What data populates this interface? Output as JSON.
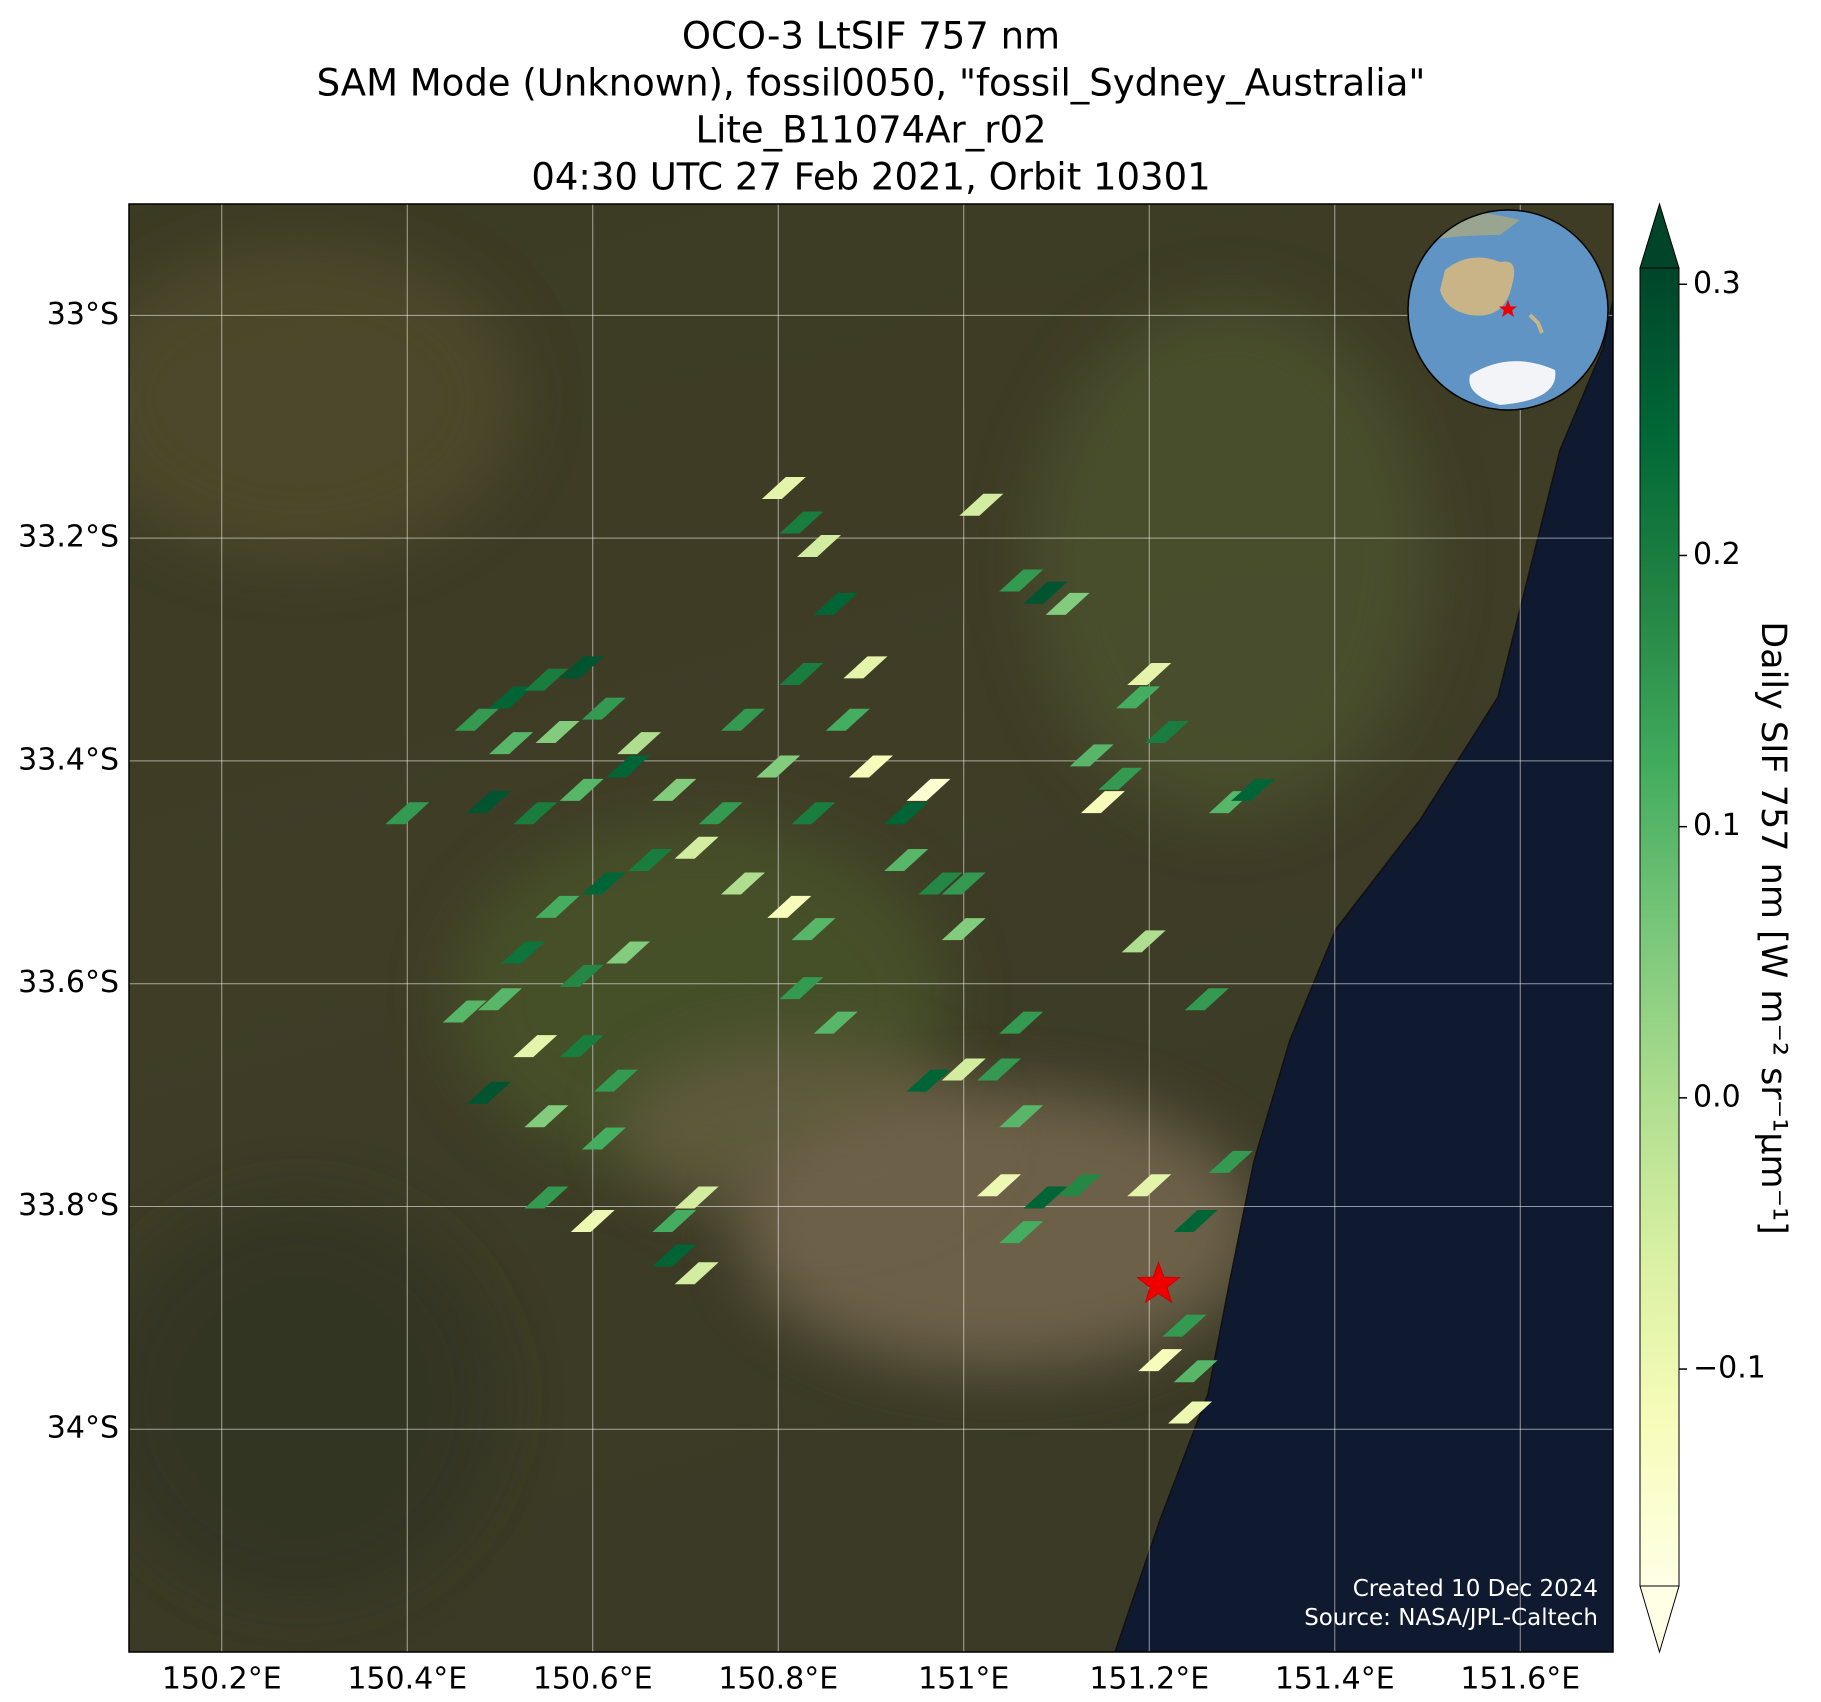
{
  "chart_data": {
    "type": "footprint-map",
    "title": [
      "OCO-3 LtSIF 757 nm",
      "SAM Mode (Unknown), fossil0050, \"fossil_Sydney_Australia\"",
      "Lite_B11074Ar_r02",
      "04:30 UTC 27 Feb 2021, Orbit 10301"
    ],
    "xlim": [
      150.1,
      151.7
    ],
    "ylim": [
      -34.2,
      -32.9
    ],
    "xticks": [
      {
        "value": 150.2,
        "label": "150.2°E"
      },
      {
        "value": 150.4,
        "label": "150.4°E"
      },
      {
        "value": 150.6,
        "label": "150.6°E"
      },
      {
        "value": 150.8,
        "label": "150.8°E"
      },
      {
        "value": 151.0,
        "label": "151°E"
      },
      {
        "value": 151.2,
        "label": "151.2°E"
      },
      {
        "value": 151.4,
        "label": "151.4°E"
      },
      {
        "value": 151.6,
        "label": "151.6°E"
      }
    ],
    "yticks": [
      {
        "value": -33.0,
        "label": "33°S"
      },
      {
        "value": -33.2,
        "label": "33.2°S"
      },
      {
        "value": -33.4,
        "label": "33.4°S"
      },
      {
        "value": -33.6,
        "label": "33.6°S"
      },
      {
        "value": -33.8,
        "label": "33.8°S"
      },
      {
        "value": -34.0,
        "label": "34°S"
      }
    ],
    "grid": true,
    "x": [
      150.475,
      150.512,
      150.55,
      150.588,
      150.512,
      150.562,
      150.612,
      150.65,
      150.488,
      150.538,
      150.588,
      150.638,
      150.688,
      150.738,
      150.712,
      150.762,
      150.812,
      150.838,
      150.662,
      150.612,
      150.562,
      150.525,
      150.588,
      150.638,
      150.4,
      150.5,
      150.462,
      150.538,
      150.588,
      150.625,
      150.488,
      150.55,
      150.612,
      150.55,
      150.6,
      150.712,
      150.688,
      150.712,
      150.688,
      150.762,
      150.8,
      150.838,
      150.875,
      150.9,
      150.938,
      150.825,
      150.862,
      150.894,
      150.806,
      150.825,
      150.844,
      150.938,
      150.975,
      151.0,
      150.962,
      150.825,
      150.862,
      151.019,
      151.062,
      151.088,
      151.112,
      151.188,
      151.2,
      151.219,
      151.138,
      151.15,
      151.169,
      151.288,
      151.312,
      151.194,
      151.262,
      151.062,
      151.0,
      151.0,
      151.038,
      151.062,
      151.038,
      151.088,
      151.062,
      151.125,
      150.962,
      151.2,
      151.25,
      151.288,
      151.238,
      151.212,
      151.25,
      151.244
    ],
    "y": [
      -33.363,
      -33.343,
      -33.327,
      -33.316,
      -33.384,
      -33.374,
      -33.353,
      -33.384,
      -33.437,
      -33.447,
      -33.426,
      -33.405,
      -33.426,
      -33.447,
      -33.478,
      -33.51,
      -33.531,
      -33.551,
      -33.489,
      -33.51,
      -33.531,
      -33.572,
      -33.593,
      -33.572,
      -33.447,
      -33.614,
      -33.625,
      -33.656,
      -33.656,
      -33.687,
      -33.698,
      -33.719,
      -33.739,
      -33.792,
      -33.813,
      -33.792,
      -33.813,
      -33.86,
      -33.844,
      -33.363,
      -33.405,
      -33.447,
      -33.363,
      -33.405,
      -33.447,
      -33.322,
      -33.259,
      -33.316,
      -33.155,
      -33.186,
      -33.207,
      -33.489,
      -33.51,
      -33.551,
      -33.426,
      -33.604,
      -33.635,
      -33.17,
      -33.238,
      -33.249,
      -33.259,
      -33.343,
      -33.322,
      -33.374,
      -33.395,
      -33.437,
      -33.416,
      -33.437,
      -33.426,
      -33.562,
      -33.614,
      -33.635,
      -33.51,
      -33.677,
      -33.677,
      -33.719,
      -33.781,
      -33.792,
      -33.823,
      -33.781,
      -33.687,
      -33.781,
      -33.813,
      -33.76,
      -33.907,
      -33.938,
      -33.948,
      -33.985
    ],
    "values": [
      0.15,
      0.25,
      0.2,
      0.28,
      0.1,
      0.05,
      0.15,
      0.0,
      0.28,
      0.2,
      0.1,
      0.25,
      0.05,
      0.15,
      -0.05,
      0.0,
      -0.12,
      0.1,
      0.2,
      0.25,
      0.12,
      0.22,
      0.18,
      0.05,
      0.15,
      0.1,
      0.1,
      -0.08,
      0.2,
      0.15,
      0.28,
      0.05,
      0.12,
      0.15,
      -0.1,
      -0.05,
      0.12,
      -0.05,
      0.25,
      0.15,
      0.05,
      0.2,
      0.12,
      -0.12,
      0.25,
      0.2,
      0.25,
      -0.08,
      -0.08,
      0.2,
      -0.05,
      0.1,
      0.18,
      0.05,
      -0.15,
      0.15,
      0.1,
      -0.05,
      0.15,
      0.28,
      0.05,
      0.12,
      -0.08,
      0.2,
      0.1,
      -0.12,
      0.15,
      0.1,
      0.25,
      0.0,
      0.15,
      0.15,
      0.15,
      -0.05,
      0.15,
      0.1,
      -0.1,
      0.25,
      0.12,
      0.18,
      0.25,
      -0.08,
      0.25,
      0.15,
      0.15,
      -0.12,
      0.1,
      -0.1
    ],
    "site": {
      "lon": 151.21,
      "lat": -33.87
    },
    "colormap": [
      "#ffffe5",
      "#f7fcb9",
      "#d9f0a3",
      "#addd8e",
      "#78c679",
      "#41ab5d",
      "#238443",
      "#006837",
      "#004529"
    ],
    "clim": [
      -0.18,
      0.306
    ],
    "cticks": [
      {
        "value": -0.1,
        "label": "−0.1"
      },
      {
        "value": 0.0,
        "label": "0.0"
      },
      0.1,
      0.2,
      0.3
    ],
    "colorbar_label": "Daily SIF 757 nm [W m⁻² sr⁻¹μm⁻¹]",
    "annotations": [
      "Created 10 Dec 2024",
      "Source: NASA/JPL-Caltech"
    ]
  }
}
